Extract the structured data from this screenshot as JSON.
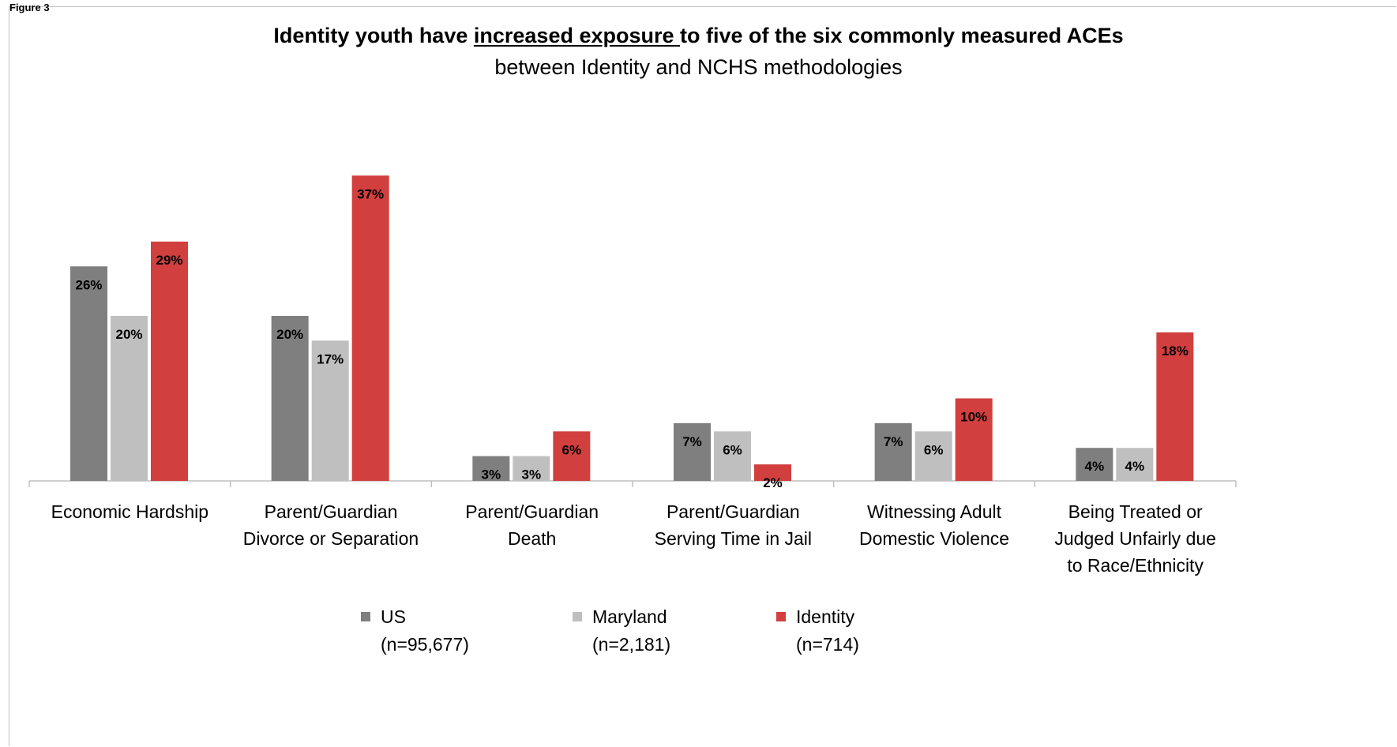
{
  "figure_label": "Figure 3",
  "title_parts": {
    "before": "Identity youth have ",
    "underlined": "increased exposure ",
    "after": "to five of the six commonly measured ACEs"
  },
  "subtitle": "between Identity and NCHS methodologies",
  "colors": {
    "us": "#7f7f7f",
    "maryland": "#bfbfbf",
    "identity": "#d13f3f",
    "axis": "#bfbfbf"
  },
  "legend": [
    {
      "name": "US",
      "n": "(n=95,677)",
      "color": "#7f7f7f"
    },
    {
      "name": "Maryland",
      "n": "(n=2,181)",
      "color": "#bfbfbf"
    },
    {
      "name": "Identity",
      "n": "(n=714)",
      "color": "#d13f3f"
    }
  ],
  "chart_data": {
    "type": "bar",
    "title": "Identity youth have increased exposure to five of the six commonly measured ACEs",
    "subtitle": "between Identity and NCHS methodologies",
    "categories": [
      [
        "Economic Hardship"
      ],
      [
        "Parent/Guardian",
        "Divorce or Separation"
      ],
      [
        "Parent/Guardian",
        "Death"
      ],
      [
        "Parent/Guardian",
        "Serving Time in Jail"
      ],
      [
        "Witnessing Adult",
        "Domestic Violence"
      ],
      [
        "Being Treated or",
        "Judged Unfairly due",
        "to Race/Ethnicity"
      ]
    ],
    "series": [
      {
        "name": "US",
        "n": "(n=95,677)",
        "values": [
          26,
          20,
          3,
          7,
          7,
          4
        ],
        "labels": [
          "26%",
          "20%",
          "3%",
          "7%",
          "7%",
          "4%"
        ]
      },
      {
        "name": "Maryland",
        "n": "(n=2,181)",
        "values": [
          20,
          17,
          3,
          6,
          6,
          4
        ],
        "labels": [
          "20%",
          "17%",
          "3%",
          "6%",
          "6%",
          "4%"
        ]
      },
      {
        "name": "Identity",
        "n": "(n=714)",
        "values": [
          29,
          37,
          6,
          2,
          10,
          18
        ],
        "labels": [
          "29%",
          "37%",
          "6%",
          "2%",
          "10%",
          "18%"
        ]
      }
    ],
    "ylim": [
      0,
      40
    ],
    "xlabel": "",
    "ylabel": "",
    "grid": false,
    "legend_position": "bottom"
  }
}
